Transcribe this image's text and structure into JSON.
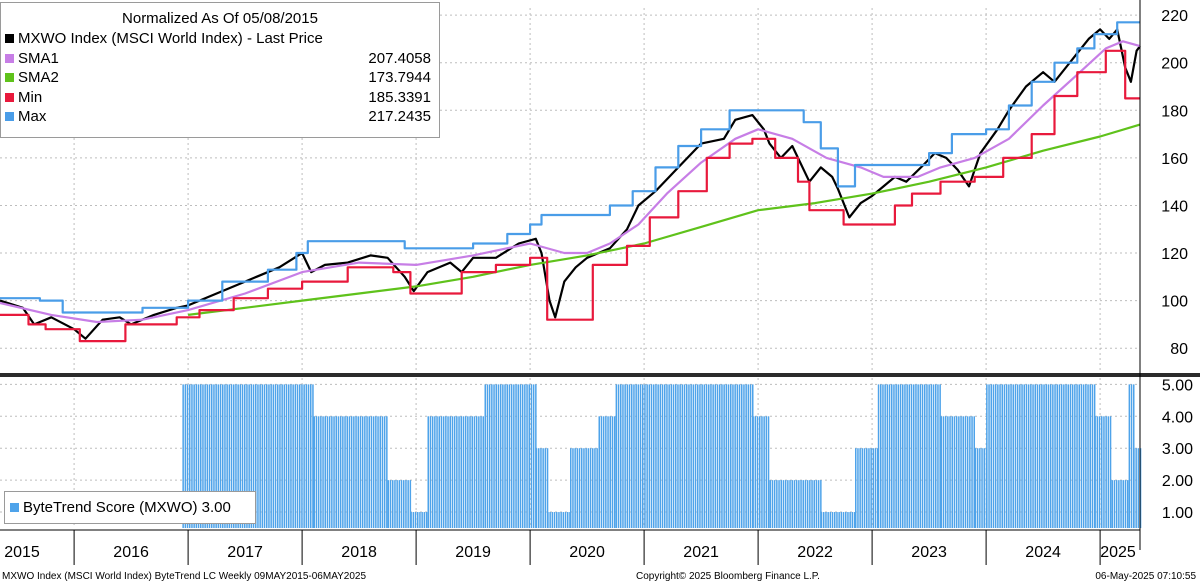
{
  "legend": {
    "title": "Normalized As Of 05/08/2015",
    "series": [
      {
        "label": "MXWO Index (MSCI World Index) - Last Price",
        "value": "",
        "color": "#000000"
      },
      {
        "label": "SMA1",
        "value": "207.4058",
        "color": "#c77ee6"
      },
      {
        "label": "SMA2",
        "value": "173.7944",
        "color": "#5fc21b"
      },
      {
        "label": "Min",
        "value": "185.3391",
        "color": "#e8193c"
      },
      {
        "label": "Max",
        "value": "217.2435",
        "color": "#4a9de8"
      }
    ]
  },
  "score_legend": {
    "label": "ByteTrend Score (MXWO) 3.00",
    "color": "#4ea3ea"
  },
  "footer": {
    "left": "MXWO Index (MSCI World Index) ByteTrend LC  Weekly 09MAY2015-06MAY2025",
    "center": "Copyright© 2025 Bloomberg Finance L.P.",
    "right": "06-May-2025 07:10:55"
  },
  "chart_data": [
    {
      "type": "line",
      "title": "Normalized As Of 05/08/2015",
      "x_range": [
        2015.35,
        2025.35
      ],
      "ylim": [
        70,
        223
      ],
      "y_ticks": [
        80,
        100,
        120,
        140,
        160,
        180,
        200,
        220
      ],
      "x_tick_labels": [
        "2015",
        "2016",
        "2017",
        "2018",
        "2019",
        "2020",
        "2021",
        "2022",
        "2023",
        "2024",
        "2025"
      ],
      "grid": true,
      "legend_position": "top-left",
      "series": [
        {
          "name": "MXWO Index (MSCI World Index) - Last Price",
          "color": "#000000",
          "points": [
            [
              2015.35,
              100
            ],
            [
              2015.55,
              97
            ],
            [
              2015.65,
              90
            ],
            [
              2015.8,
              93
            ],
            [
              2016.0,
              88
            ],
            [
              2016.1,
              84
            ],
            [
              2016.25,
              92
            ],
            [
              2016.4,
              93
            ],
            [
              2016.5,
              90
            ],
            [
              2016.7,
              94
            ],
            [
              2016.9,
              97
            ],
            [
              2017.0,
              98
            ],
            [
              2017.2,
              102
            ],
            [
              2017.4,
              106
            ],
            [
              2017.6,
              110
            ],
            [
              2017.8,
              114
            ],
            [
              2018.0,
              120
            ],
            [
              2018.08,
              112
            ],
            [
              2018.2,
              115
            ],
            [
              2018.4,
              116
            ],
            [
              2018.6,
              119
            ],
            [
              2018.75,
              118
            ],
            [
              2018.9,
              110
            ],
            [
              2018.98,
              104
            ],
            [
              2019.1,
              112
            ],
            [
              2019.3,
              116
            ],
            [
              2019.4,
              112
            ],
            [
              2019.5,
              118
            ],
            [
              2019.7,
              118
            ],
            [
              2019.9,
              124
            ],
            [
              2020.05,
              126
            ],
            [
              2020.1,
              120
            ],
            [
              2020.17,
              100
            ],
            [
              2020.22,
              93
            ],
            [
              2020.3,
              108
            ],
            [
              2020.4,
              114
            ],
            [
              2020.5,
              118
            ],
            [
              2020.6,
              120
            ],
            [
              2020.7,
              122
            ],
            [
              2020.85,
              130
            ],
            [
              2020.95,
              140
            ],
            [
              2021.1,
              146
            ],
            [
              2021.3,
              156
            ],
            [
              2021.5,
              166
            ],
            [
              2021.7,
              168
            ],
            [
              2021.8,
              176
            ],
            [
              2021.95,
              178
            ],
            [
              2022.05,
              172
            ],
            [
              2022.1,
              166
            ],
            [
              2022.2,
              160
            ],
            [
              2022.3,
              165
            ],
            [
              2022.45,
              150
            ],
            [
              2022.55,
              156
            ],
            [
              2022.65,
              152
            ],
            [
              2022.7,
              147
            ],
            [
              2022.8,
              135
            ],
            [
              2022.9,
              141
            ],
            [
              2023.0,
              144
            ],
            [
              2023.1,
              148
            ],
            [
              2023.2,
              152
            ],
            [
              2023.3,
              150
            ],
            [
              2023.45,
              157
            ],
            [
              2023.55,
              162
            ],
            [
              2023.65,
              160
            ],
            [
              2023.75,
              155
            ],
            [
              2023.85,
              148
            ],
            [
              2023.95,
              162
            ],
            [
              2024.1,
              172
            ],
            [
              2024.2,
              180
            ],
            [
              2024.35,
              190
            ],
            [
              2024.5,
              196
            ],
            [
              2024.6,
              192
            ],
            [
              2024.7,
              198
            ],
            [
              2024.8,
              204
            ],
            [
              2024.9,
              210
            ],
            [
              2025.0,
              214
            ],
            [
              2025.08,
              210
            ],
            [
              2025.15,
              214
            ],
            [
              2025.22,
              198
            ],
            [
              2025.27,
              192
            ],
            [
              2025.32,
              205
            ],
            [
              2025.35,
              207
            ]
          ]
        },
        {
          "name": "SMA1",
          "color": "#c77ee6",
          "points": [
            [
              2015.35,
              99
            ],
            [
              2015.8,
              94
            ],
            [
              2016.2,
              91
            ],
            [
              2016.6,
              92
            ],
            [
              2017.0,
              96
            ],
            [
              2017.5,
              103
            ],
            [
              2018.0,
              112
            ],
            [
              2018.5,
              116
            ],
            [
              2019.0,
              115
            ],
            [
              2019.5,
              119
            ],
            [
              2020.0,
              124
            ],
            [
              2020.3,
              120
            ],
            [
              2020.5,
              120
            ],
            [
              2020.7,
              124
            ],
            [
              2020.95,
              132
            ],
            [
              2021.2,
              145
            ],
            [
              2021.5,
              158
            ],
            [
              2021.8,
              168
            ],
            [
              2022.0,
              172
            ],
            [
              2022.3,
              168
            ],
            [
              2022.6,
              160
            ],
            [
              2022.9,
              156
            ],
            [
              2023.1,
              152
            ],
            [
              2023.4,
              152
            ],
            [
              2023.6,
              156
            ],
            [
              2023.9,
              160
            ],
            [
              2024.2,
              168
            ],
            [
              2024.5,
              182
            ],
            [
              2024.8,
              195
            ],
            [
              2025.05,
              206
            ],
            [
              2025.2,
              209
            ],
            [
              2025.35,
              207
            ]
          ]
        },
        {
          "name": "SMA2",
          "color": "#5fc21b",
          "points": [
            [
              2017.0,
              94
            ],
            [
              2017.5,
              97
            ],
            [
              2018.0,
              100
            ],
            [
              2018.5,
              103
            ],
            [
              2019.0,
              106
            ],
            [
              2019.5,
              110
            ],
            [
              2020.0,
              115
            ],
            [
              2020.5,
              119
            ],
            [
              2021.0,
              124
            ],
            [
              2021.5,
              131
            ],
            [
              2022.0,
              138
            ],
            [
              2022.5,
              141
            ],
            [
              2023.0,
              145
            ],
            [
              2023.5,
              150
            ],
            [
              2024.0,
              156
            ],
            [
              2024.5,
              163
            ],
            [
              2025.0,
              169
            ],
            [
              2025.35,
              174
            ]
          ]
        },
        {
          "name": "Min",
          "color": "#e8193c",
          "step": true,
          "points": [
            [
              2015.35,
              94
            ],
            [
              2015.6,
              90
            ],
            [
              2015.75,
              88
            ],
            [
              2016.05,
              83
            ],
            [
              2016.4,
              83
            ],
            [
              2016.45,
              90
            ],
            [
              2016.9,
              93
            ],
            [
              2017.1,
              96
            ],
            [
              2017.4,
              101
            ],
            [
              2017.7,
              105
            ],
            [
              2018.0,
              108
            ],
            [
              2018.4,
              114
            ],
            [
              2018.8,
              112
            ],
            [
              2018.95,
              103
            ],
            [
              2019.35,
              103
            ],
            [
              2019.4,
              112
            ],
            [
              2019.7,
              115
            ],
            [
              2020.0,
              118
            ],
            [
              2020.15,
              92
            ],
            [
              2020.5,
              92
            ],
            [
              2020.55,
              115
            ],
            [
              2020.85,
              123
            ],
            [
              2021.05,
              135
            ],
            [
              2021.3,
              146
            ],
            [
              2021.55,
              160
            ],
            [
              2021.75,
              166
            ],
            [
              2021.95,
              168
            ],
            [
              2022.15,
              160
            ],
            [
              2022.35,
              150
            ],
            [
              2022.45,
              138
            ],
            [
              2022.75,
              132
            ],
            [
              2023.1,
              132
            ],
            [
              2023.2,
              140
            ],
            [
              2023.35,
              145
            ],
            [
              2023.6,
              150
            ],
            [
              2023.9,
              152
            ],
            [
              2024.15,
              160
            ],
            [
              2024.4,
              170
            ],
            [
              2024.6,
              186
            ],
            [
              2024.8,
              196
            ],
            [
              2025.05,
              205
            ],
            [
              2025.22,
              185
            ],
            [
              2025.35,
              185
            ]
          ]
        },
        {
          "name": "Max",
          "color": "#4a9de8",
          "step": true,
          "points": [
            [
              2015.35,
              101
            ],
            [
              2015.7,
              100
            ],
            [
              2015.9,
              95
            ],
            [
              2016.4,
              95
            ],
            [
              2016.6,
              97
            ],
            [
              2017.0,
              100
            ],
            [
              2017.3,
              108
            ],
            [
              2017.7,
              113
            ],
            [
              2017.95,
              120
            ],
            [
              2018.05,
              125
            ],
            [
              2018.7,
              125
            ],
            [
              2018.9,
              122
            ],
            [
              2019.3,
              122
            ],
            [
              2019.5,
              124
            ],
            [
              2019.8,
              128
            ],
            [
              2020.0,
              132
            ],
            [
              2020.1,
              136
            ],
            [
              2020.55,
              136
            ],
            [
              2020.7,
              140
            ],
            [
              2020.9,
              146
            ],
            [
              2021.1,
              156
            ],
            [
              2021.3,
              165
            ],
            [
              2021.5,
              172
            ],
            [
              2021.75,
              180
            ],
            [
              2022.2,
              180
            ],
            [
              2022.4,
              175
            ],
            [
              2022.55,
              164
            ],
            [
              2022.7,
              148
            ],
            [
              2022.85,
              157
            ],
            [
              2023.3,
              157
            ],
            [
              2023.5,
              162
            ],
            [
              2023.7,
              170
            ],
            [
              2024.0,
              172
            ],
            [
              2024.2,
              182
            ],
            [
              2024.4,
              192
            ],
            [
              2024.6,
              200
            ],
            [
              2024.8,
              206
            ],
            [
              2024.95,
              212
            ],
            [
              2025.15,
              217
            ],
            [
              2025.35,
              217
            ]
          ]
        }
      ]
    },
    {
      "type": "bar",
      "name": "ByteTrend Score (MXWO) 3.00",
      "ylim": [
        0.5,
        5.2
      ],
      "y_ticks": [
        "1.00",
        "2.00",
        "3.00",
        "4.00",
        "5.00"
      ],
      "color": "#4ea3ea",
      "segments": [
        {
          "start": 2016.95,
          "end": 2018.1,
          "value": 5
        },
        {
          "start": 2018.1,
          "end": 2018.75,
          "value": 4
        },
        {
          "start": 2018.75,
          "end": 2018.95,
          "value": 2
        },
        {
          "start": 2018.95,
          "end": 2019.1,
          "value": 1
        },
        {
          "start": 2019.1,
          "end": 2019.6,
          "value": 4
        },
        {
          "start": 2019.6,
          "end": 2020.05,
          "value": 5
        },
        {
          "start": 2020.05,
          "end": 2020.15,
          "value": 3
        },
        {
          "start": 2020.15,
          "end": 2020.35,
          "value": 1
        },
        {
          "start": 2020.35,
          "end": 2020.6,
          "value": 3
        },
        {
          "start": 2020.6,
          "end": 2020.75,
          "value": 4
        },
        {
          "start": 2020.75,
          "end": 2021.95,
          "value": 5
        },
        {
          "start": 2021.95,
          "end": 2022.1,
          "value": 4
        },
        {
          "start": 2022.1,
          "end": 2022.55,
          "value": 2
        },
        {
          "start": 2022.55,
          "end": 2022.85,
          "value": 1
        },
        {
          "start": 2022.85,
          "end": 2023.05,
          "value": 3
        },
        {
          "start": 2023.05,
          "end": 2023.6,
          "value": 5
        },
        {
          "start": 2023.6,
          "end": 2023.9,
          "value": 4
        },
        {
          "start": 2023.9,
          "end": 2024.0,
          "value": 3
        },
        {
          "start": 2024.0,
          "end": 2024.95,
          "value": 5
        },
        {
          "start": 2024.95,
          "end": 2025.1,
          "value": 4
        },
        {
          "start": 2025.1,
          "end": 2025.25,
          "value": 2
        },
        {
          "start": 2025.25,
          "end": 2025.29,
          "value": 5
        },
        {
          "start": 2025.29,
          "end": 2025.35,
          "value": 3
        }
      ]
    }
  ]
}
